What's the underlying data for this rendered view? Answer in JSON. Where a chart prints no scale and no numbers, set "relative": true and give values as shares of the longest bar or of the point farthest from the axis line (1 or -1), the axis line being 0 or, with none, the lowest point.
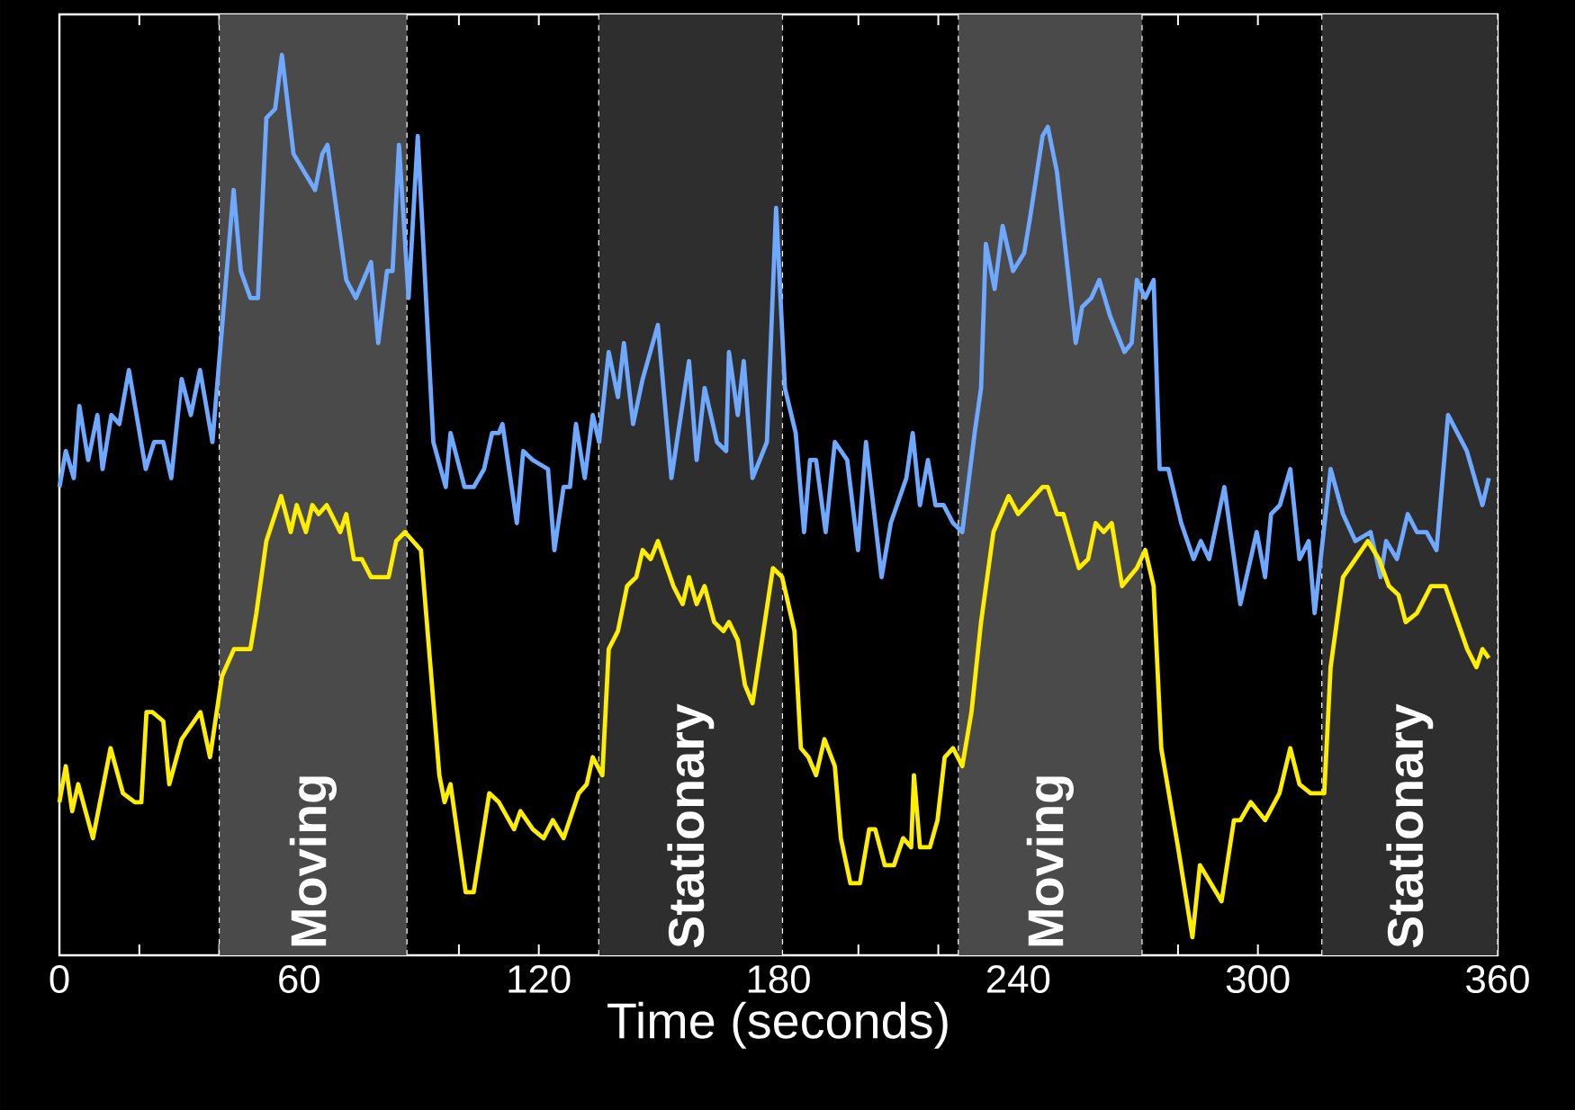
{
  "chart_data": {
    "type": "line",
    "relative": true,
    "xlabel": "Time (seconds)",
    "xlim": [
      0,
      360
    ],
    "xticks": [
      0,
      {
        "value": 20,
        "label": null
      },
      {
        "value": 40,
        "label": null
      },
      60,
      {
        "value": 80,
        "label": null
      },
      {
        "value": 100,
        "label": null
      },
      120,
      {
        "value": 140,
        "label": null
      },
      {
        "value": 160,
        "label": null
      },
      180,
      {
        "value": 200,
        "label": null
      },
      {
        "value": 220,
        "label": null
      },
      240,
      {
        "value": 260,
        "label": null
      },
      {
        "value": 280,
        "label": null
      },
      300,
      {
        "value": 320,
        "label": null
      },
      {
        "value": 340,
        "label": null
      },
      360
    ],
    "bands": [
      {
        "axis": "x",
        "from": 40,
        "to": 87,
        "label": "Moving",
        "color": "#4a4a4a"
      },
      {
        "axis": "x",
        "from": 135,
        "to": 181,
        "label": "Stationary",
        "color": "#2e2e2e"
      },
      {
        "axis": "x",
        "from": 225,
        "to": 271,
        "label": "Moving",
        "color": "#4a4a4a"
      },
      {
        "axis": "x",
        "from": 316,
        "to": 360,
        "label": "Stationary",
        "color": "#2e2e2e"
      }
    ],
    "series": [
      {
        "color": "#6fa8ff",
        "x": [
          0,
          1.6,
          3.6,
          5,
          7.2,
          9.5,
          10.8,
          13,
          15,
          17.4,
          21.6,
          23.7,
          26,
          28,
          30.6,
          32.9,
          35.2,
          38.3,
          43.6,
          45.4,
          47.8,
          49.7,
          51.8,
          54,
          55.7,
          58.6,
          64,
          65.8,
          67.1,
          71.8,
          74.2,
          78,
          79.8,
          82,
          83.4,
          85,
          87.4,
          89.7,
          93.6,
          96.7,
          97.9,
          101.4,
          103.7,
          106.3,
          108.3,
          110,
          110.9,
          114.5,
          116.1,
          118.5,
          122.3,
          123.9,
          126.2,
          127.8,
          129.3,
          131.5,
          133.5,
          135.1,
          137.5,
          139.8,
          141.3,
          143.6,
          146,
          149.8,
          153.2,
          157.6,
          159.5,
          161.5,
          164.6,
          166.9,
          167.6,
          169.8,
          171.3,
          173.5,
          177.1,
          179.4,
          181.6,
          184.3,
          186.4,
          187.9,
          189.4,
          191.8,
          194.1,
          197.2,
          199.9,
          201.9,
          205.8,
          208.1,
          212,
          213.6,
          215.4,
          217.4,
          219.3,
          221.3,
          223.7,
          226,
          229.1,
          230.7,
          231.9,
          234.1,
          236.1,
          238.7,
          241.5,
          243,
          246.1,
          247.4,
          249.7,
          254.4,
          256,
          258.3,
          260.3,
          263,
          266.6,
          268.4,
          269.7,
          271.8,
          273.9,
          275.4,
          277.6,
          280.8,
          283.9,
          285.7,
          287.8,
          291.6,
          295.6,
          299.7,
          301.8,
          303.3,
          305.5,
          308.1,
          310.4,
          312.7,
          314.2,
          318.2,
          321.3,
          324.4,
          328.2,
          330.7,
          332.1,
          334.8,
          337.5,
          339.8,
          342.2,
          344.7,
          347.6,
          352.3,
          356.2,
          357.8
        ],
        "values": [
          0.52,
          0.56,
          0.53,
          0.61,
          0.55,
          0.6,
          0.54,
          0.6,
          0.59,
          0.65,
          0.54,
          0.57,
          0.57,
          0.53,
          0.64,
          0.6,
          0.65,
          0.57,
          0.85,
          0.76,
          0.73,
          0.73,
          0.93,
          0.94,
          1.0,
          0.89,
          0.85,
          0.89,
          0.9,
          0.75,
          0.73,
          0.77,
          0.68,
          0.76,
          0.76,
          0.9,
          0.73,
          0.91,
          0.57,
          0.52,
          0.58,
          0.52,
          0.52,
          0.54,
          0.58,
          0.58,
          0.59,
          0.48,
          0.56,
          0.55,
          0.54,
          0.45,
          0.52,
          0.52,
          0.59,
          0.53,
          0.6,
          0.57,
          0.67,
          0.62,
          0.68,
          0.59,
          0.64,
          0.7,
          0.53,
          0.66,
          0.55,
          0.63,
          0.57,
          0.56,
          0.67,
          0.6,
          0.66,
          0.53,
          0.57,
          0.83,
          0.63,
          0.58,
          0.47,
          0.55,
          0.55,
          0.47,
          0.57,
          0.55,
          0.45,
          0.57,
          0.42,
          0.48,
          0.53,
          0.58,
          0.5,
          0.55,
          0.5,
          0.5,
          0.48,
          0.47,
          0.58,
          0.63,
          0.79,
          0.74,
          0.81,
          0.76,
          0.78,
          0.82,
          0.91,
          0.92,
          0.87,
          0.68,
          0.72,
          0.73,
          0.75,
          0.71,
          0.67,
          0.68,
          0.75,
          0.73,
          0.75,
          0.54,
          0.54,
          0.48,
          0.44,
          0.46,
          0.44,
          0.52,
          0.39,
          0.47,
          0.42,
          0.49,
          0.5,
          0.54,
          0.44,
          0.46,
          0.38,
          0.54,
          0.49,
          0.46,
          0.47,
          0.42,
          0.46,
          0.44,
          0.49,
          0.47,
          0.47,
          0.45,
          0.6,
          0.56,
          0.5,
          0.53
        ]
      },
      {
        "color": "#ffee00",
        "x": [
          0,
          1.6,
          3.2,
          4.7,
          8.4,
          12.8,
          15.9,
          18.9,
          20.5,
          21.8,
          23.3,
          26,
          27.5,
          30.6,
          35.3,
          37.7,
          40.7,
          43.7,
          47.8,
          49.3,
          51.8,
          55.5,
          57.9,
          59.4,
          61.7,
          63.3,
          64.9,
          66.9,
          70.3,
          71.8,
          73.7,
          75.7,
          78,
          82.4,
          84.3,
          86.5,
          90.5,
          95.1,
          96.4,
          97.9,
          101.7,
          103.7,
          107.6,
          110,
          113.8,
          115.4,
          118.5,
          121.2,
          123.5,
          126.2,
          130,
          132,
          133.5,
          135.9,
          137.5,
          139.8,
          142.1,
          144.4,
          146,
          148,
          149.8,
          153.7,
          156,
          157.6,
          159.5,
          161.5,
          163.9,
          166.2,
          167.6,
          169.8,
          171.6,
          173.5,
          178.6,
          180.9,
          184,
          185.6,
          187.5,
          189.4,
          191.5,
          194.1,
          195.6,
          198,
          200.4,
          202.7,
          204.2,
          206.6,
          208.9,
          211.2,
          213.2,
          213.9,
          215.4,
          217.9,
          219.8,
          221.6,
          223.7,
          226,
          228.3,
          230.7,
          233.8,
          237.6,
          240,
          246.1,
          247.4,
          249.7,
          251.3,
          255.2,
          257.5,
          259.4,
          261.4,
          263.4,
          266,
          269.7,
          271.8,
          273.9,
          275.8,
          280,
          283.6,
          285.5,
          290.9,
          294,
          295.6,
          298.2,
          301.8,
          305.4,
          308.1,
          310.4,
          313.2,
          316.6,
          318.2,
          321.3,
          324.4,
          327.5,
          330.3,
          332.8,
          335.2,
          337,
          339.8,
          343.3,
          346.9,
          352.4,
          354.7,
          356.2,
          357.8
        ],
        "values": [
          0.17,
          0.21,
          0.16,
          0.19,
          0.13,
          0.23,
          0.18,
          0.17,
          0.17,
          0.27,
          0.27,
          0.26,
          0.19,
          0.24,
          0.27,
          0.22,
          0.31,
          0.34,
          0.34,
          0.38,
          0.46,
          0.51,
          0.47,
          0.5,
          0.47,
          0.5,
          0.49,
          0.5,
          0.47,
          0.49,
          0.44,
          0.44,
          0.42,
          0.42,
          0.46,
          0.47,
          0.45,
          0.2,
          0.17,
          0.19,
          0.07,
          0.07,
          0.18,
          0.17,
          0.14,
          0.16,
          0.14,
          0.13,
          0.15,
          0.13,
          0.18,
          0.19,
          0.22,
          0.2,
          0.34,
          0.36,
          0.41,
          0.42,
          0.45,
          0.44,
          0.46,
          0.41,
          0.39,
          0.42,
          0.39,
          0.41,
          0.37,
          0.36,
          0.37,
          0.35,
          0.3,
          0.28,
          0.43,
          0.42,
          0.36,
          0.23,
          0.22,
          0.2,
          0.24,
          0.21,
          0.13,
          0.08,
          0.08,
          0.14,
          0.14,
          0.1,
          0.1,
          0.13,
          0.12,
          0.2,
          0.12,
          0.12,
          0.15,
          0.22,
          0.23,
          0.21,
          0.27,
          0.37,
          0.47,
          0.51,
          0.49,
          0.52,
          0.52,
          0.49,
          0.49,
          0.43,
          0.44,
          0.48,
          0.47,
          0.48,
          0.41,
          0.43,
          0.45,
          0.41,
          0.23,
          0.12,
          0.02,
          0.1,
          0.06,
          0.15,
          0.15,
          0.17,
          0.15,
          0.18,
          0.23,
          0.19,
          0.18,
          0.18,
          0.32,
          0.42,
          0.44,
          0.46,
          0.44,
          0.41,
          0.4,
          0.37,
          0.38,
          0.41,
          0.41,
          0.34,
          0.32,
          0.34,
          0.33
        ]
      }
    ]
  }
}
